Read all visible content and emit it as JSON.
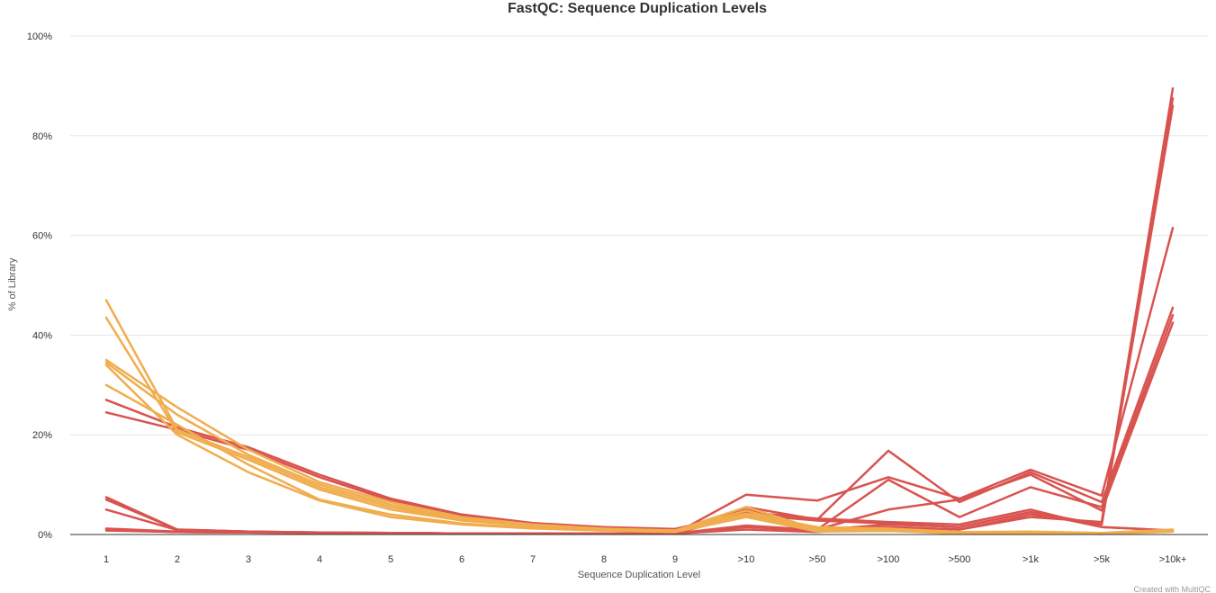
{
  "chart_data": {
    "type": "line",
    "title": "FastQC: Sequence Duplication Levels",
    "xlabel": "Sequence Duplication Level",
    "ylabel": "% of Library",
    "credit": "Created with MultiQC",
    "categories": [
      "1",
      "2",
      "3",
      "4",
      "5",
      "6",
      "7",
      "8",
      "9",
      ">10",
      ">50",
      ">100",
      ">500",
      ">1k",
      ">5k",
      ">10k+"
    ],
    "ylim": [
      0,
      100
    ],
    "yticks": [
      0,
      20,
      40,
      60,
      80,
      100
    ],
    "ytick_labels": [
      "0%",
      "20%",
      "40%",
      "60%",
      "80%",
      "100%"
    ],
    "grid": true,
    "legend": "none",
    "colors": {
      "fail": "#d9534f",
      "warn": "#f0ad4e"
    },
    "series": [
      {
        "status": "fail",
        "values": [
          7.0,
          1.0,
          0.6,
          0.4,
          0.3,
          0.2,
          0.2,
          0.2,
          0.2,
          1.5,
          0.8,
          1.5,
          1.0,
          3.5,
          2.5,
          89.5
        ]
      },
      {
        "status": "fail",
        "values": [
          7.5,
          1.0,
          0.6,
          0.4,
          0.3,
          0.2,
          0.2,
          0.2,
          0.2,
          1.8,
          0.9,
          2.0,
          1.5,
          4.5,
          2.0,
          87.5
        ]
      },
      {
        "status": "fail",
        "values": [
          5.0,
          0.9,
          0.6,
          0.4,
          0.3,
          0.2,
          0.2,
          0.2,
          0.2,
          1.0,
          0.5,
          1.5,
          1.0,
          4.0,
          2.0,
          86.0
        ]
      },
      {
        "status": "fail",
        "values": [
          1.2,
          0.6,
          0.5,
          0.4,
          0.3,
          0.2,
          0.2,
          0.2,
          0.2,
          8.0,
          6.8,
          11.5,
          7.2,
          13.0,
          7.8,
          61.5
        ]
      },
      {
        "status": "fail",
        "values": [
          1.0,
          0.5,
          0.4,
          0.3,
          0.3,
          0.2,
          0.2,
          0.2,
          0.2,
          5.5,
          3.0,
          16.8,
          6.5,
          12.5,
          6.5,
          45.5
        ]
      },
      {
        "status": "fail",
        "values": [
          0.8,
          0.5,
          0.4,
          0.3,
          0.3,
          0.2,
          0.2,
          0.2,
          0.2,
          4.0,
          1.0,
          11.0,
          3.5,
          9.5,
          5.5,
          44.0
        ]
      },
      {
        "status": "fail",
        "values": [
          1.0,
          0.5,
          0.4,
          0.3,
          0.3,
          0.2,
          0.2,
          0.2,
          0.2,
          5.0,
          1.0,
          5.0,
          7.0,
          12.0,
          4.8,
          42.5
        ]
      },
      {
        "status": "fail",
        "values": [
          27.0,
          21.5,
          17.5,
          12.0,
          7.2,
          4.0,
          2.3,
          1.5,
          1.1,
          4.5,
          3.2,
          2.5,
          2.0,
          5.0,
          1.5,
          0.8
        ]
      },
      {
        "status": "fail",
        "values": [
          24.5,
          21.0,
          17.0,
          11.5,
          6.8,
          3.8,
          2.2,
          1.4,
          1.0,
          4.0,
          2.8,
          2.2,
          1.5,
          4.5,
          1.5,
          0.8
        ]
      },
      {
        "status": "warn",
        "values": [
          47.0,
          21.0,
          15.5,
          9.5,
          5.5,
          3.0,
          1.8,
          1.1,
          0.8,
          4.2,
          1.5,
          1.2,
          0.5,
          0.6,
          0.3,
          1.0
        ]
      },
      {
        "status": "warn",
        "values": [
          43.5,
          20.5,
          15.0,
          9.0,
          5.0,
          2.8,
          1.7,
          1.0,
          0.7,
          4.0,
          1.3,
          1.0,
          0.4,
          0.5,
          0.2,
          0.9
        ]
      },
      {
        "status": "warn",
        "values": [
          35.0,
          25.5,
          17.0,
          10.5,
          6.5,
          3.5,
          2.0,
          1.2,
          0.8,
          5.5,
          1.0,
          1.0,
          0.4,
          0.5,
          0.2,
          0.8
        ]
      },
      {
        "status": "warn",
        "values": [
          34.5,
          24.0,
          16.0,
          10.0,
          6.0,
          3.2,
          1.9,
          1.1,
          0.8,
          4.8,
          0.9,
          0.9,
          0.3,
          0.4,
          0.2,
          0.7
        ]
      },
      {
        "status": "warn",
        "values": [
          34.0,
          20.0,
          12.5,
          6.8,
          3.5,
          2.0,
          1.2,
          0.8,
          0.5,
          3.5,
          0.6,
          0.7,
          0.2,
          0.3,
          0.1,
          0.6
        ]
      },
      {
        "status": "warn",
        "values": [
          30.0,
          22.0,
          14.0,
          7.0,
          4.0,
          2.2,
          1.3,
          0.8,
          0.6,
          3.8,
          0.7,
          0.8,
          0.3,
          0.4,
          0.1,
          0.6
        ]
      }
    ]
  }
}
